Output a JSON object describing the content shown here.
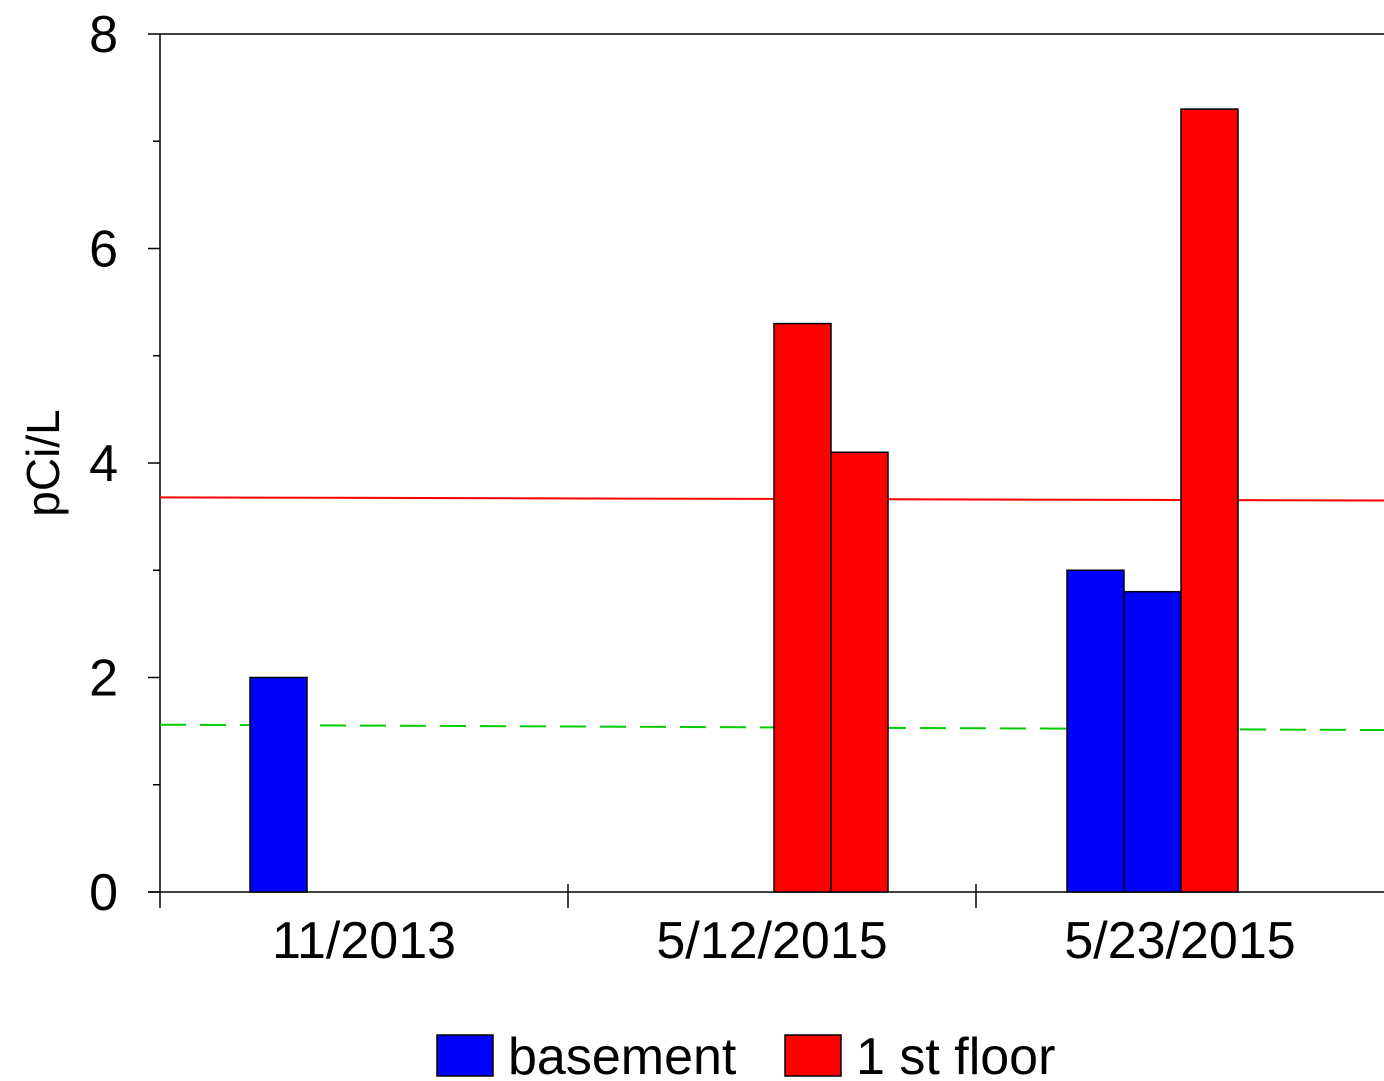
{
  "chart_data": {
    "type": "bar",
    "title": "",
    "xlabel": "",
    "ylabel": "pCi/L",
    "ylim": [
      0,
      8
    ],
    "yticks_major": [
      0,
      2,
      4,
      6,
      8
    ],
    "yticks_minor": [
      1,
      3,
      5,
      7
    ],
    "grid": false,
    "legend_position": "bottom",
    "categories": [
      "11/2013",
      "5/12/2015",
      "5/23/2015"
    ],
    "series": [
      {
        "name": "basement",
        "color": "#0000ff"
      },
      {
        "name": "1 st floor",
        "color": "#ff0000"
      }
    ],
    "bars": [
      {
        "category": "11/2013",
        "series": "basement",
        "value": 2.0
      },
      {
        "category": "5/12/2015",
        "series": "1 st floor",
        "value": 5.3
      },
      {
        "category": "5/12/2015",
        "series": "1 st floor",
        "value": 4.1
      },
      {
        "category": "5/23/2015",
        "series": "basement",
        "value": 3.0
      },
      {
        "category": "5/23/2015",
        "series": "basement",
        "value": 2.8
      },
      {
        "category": "5/23/2015",
        "series": "1 st floor",
        "value": 7.3
      }
    ],
    "reference_lines": [
      {
        "value_start": 3.68,
        "value_end": 3.65,
        "color": "#ff0000",
        "style": "solid"
      },
      {
        "value_start": 1.56,
        "value_end": 1.51,
        "color": "#00cc00",
        "style": "dashed"
      }
    ]
  }
}
